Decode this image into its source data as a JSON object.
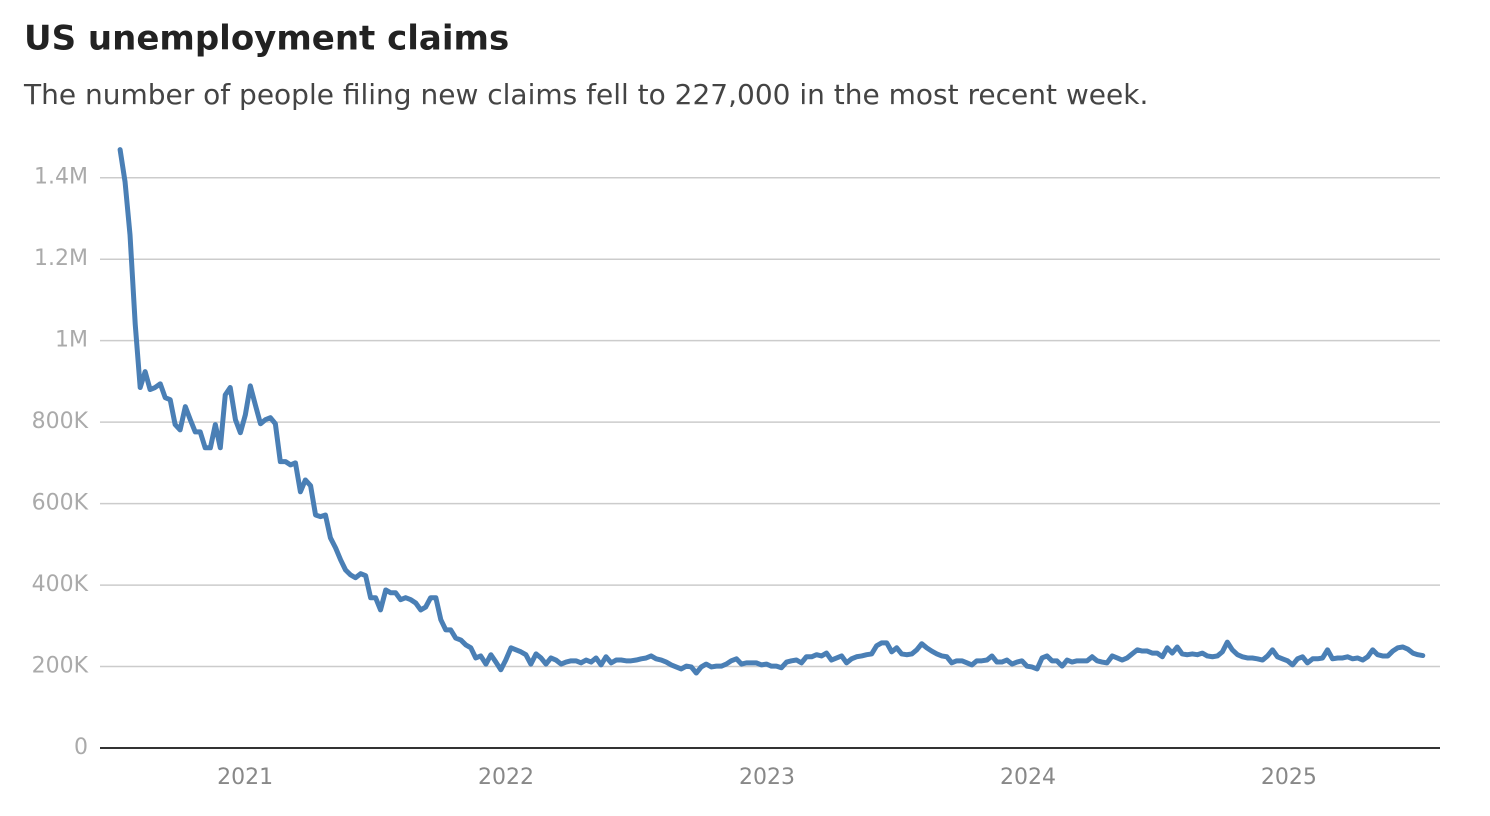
{
  "chart_data": {
    "type": "line",
    "title": "US unemployment claims",
    "subtitle": "The number of people filing new claims fell to 227,000 in the most recent week.",
    "color": "#4a7fb5",
    "grid": true,
    "xlim": [
      2020.444,
      2025.579
    ],
    "xticks": [
      2021,
      2022,
      2023,
      2024,
      2025
    ],
    "ylim": [
      0,
      1500000
    ],
    "yticks": [
      0,
      {
        "value": 200000,
        "label": "200K"
      },
      {
        "value": 400000,
        "label": "400K"
      },
      {
        "value": 600000,
        "label": "600K"
      },
      {
        "value": 800000,
        "label": "800K"
      },
      {
        "value": 1000000,
        "label": "1M"
      },
      {
        "value": 1200000,
        "label": "1.2M"
      },
      {
        "value": 1400000,
        "label": "1.4M"
      }
    ],
    "x": [
      2020.521,
      2020.54,
      2020.559,
      2020.579,
      2020.598,
      2020.617,
      2020.636,
      2020.655,
      2020.675,
      2020.694,
      2020.713,
      2020.732,
      2020.751,
      2020.771,
      2020.79,
      2020.809,
      2020.828,
      2020.847,
      2020.867,
      2020.886,
      2020.905,
      2020.924,
      2020.943,
      2020.963,
      2020.982,
      2021.001,
      2021.02,
      2021.039,
      2021.059,
      2021.078,
      2021.097,
      2021.116,
      2021.135,
      2021.155,
      2021.174,
      2021.193,
      2021.212,
      2021.231,
      2021.251,
      2021.27,
      2021.289,
      2021.308,
      2021.327,
      2021.347,
      2021.366,
      2021.385,
      2021.404,
      2021.423,
      2021.443,
      2021.462,
      2021.481,
      2021.5,
      2021.519,
      2021.539,
      2021.558,
      2021.577,
      2021.596,
      2021.615,
      2021.635,
      2021.654,
      2021.673,
      2021.692,
      2021.711,
      2021.731,
      2021.75,
      2021.769,
      2021.788,
      2021.807,
      2021.827,
      2021.846,
      2021.865,
      2021.884,
      2021.903,
      2021.923,
      2021.942,
      2021.961,
      2021.98,
      2021.999,
      2022.019,
      2022.038,
      2022.057,
      2022.076,
      2022.095,
      2022.115,
      2022.134,
      2022.153,
      2022.172,
      2022.191,
      2022.211,
      2022.23,
      2022.249,
      2022.268,
      2022.287,
      2022.307,
      2022.326,
      2022.345,
      2022.364,
      2022.383,
      2022.403,
      2022.422,
      2022.441,
      2022.46,
      2022.479,
      2022.499,
      2022.518,
      2022.537,
      2022.556,
      2022.575,
      2022.595,
      2022.614,
      2022.633,
      2022.652,
      2022.671,
      2022.691,
      2022.71,
      2022.729,
      2022.748,
      2022.767,
      2022.787,
      2022.806,
      2022.825,
      2022.844,
      2022.863,
      2022.883,
      2022.902,
      2022.921,
      2022.94,
      2022.959,
      2022.979,
      2022.998,
      2023.017,
      2023.036,
      2023.055,
      2023.075,
      2023.094,
      2023.113,
      2023.132,
      2023.151,
      2023.171,
      2023.19,
      2023.209,
      2023.228,
      2023.247,
      2023.267,
      2023.286,
      2023.305,
      2023.324,
      2023.343,
      2023.363,
      2023.382,
      2023.401,
      2023.42,
      2023.439,
      2023.459,
      2023.478,
      2023.497,
      2023.516,
      2023.535,
      2023.555,
      2023.574,
      2023.593,
      2023.612,
      2023.631,
      2023.651,
      2023.67,
      2023.689,
      2023.708,
      2023.727,
      2023.747,
      2023.766,
      2023.785,
      2023.804,
      2023.823,
      2023.843,
      2023.862,
      2023.881,
      2023.9,
      2023.919,
      2023.939,
      2023.958,
      2023.977,
      2023.996,
      2024.015,
      2024.035,
      2024.054,
      2024.073,
      2024.092,
      2024.111,
      2024.131,
      2024.15,
      2024.169,
      2024.188,
      2024.207,
      2024.227,
      2024.246,
      2024.265,
      2024.284,
      2024.303,
      2024.323,
      2024.342,
      2024.361,
      2024.38,
      2024.399,
      2024.419,
      2024.438,
      2024.457,
      2024.476,
      2024.495,
      2024.515,
      2024.534,
      2024.553,
      2024.572,
      2024.591,
      2024.611,
      2024.63,
      2024.649,
      2024.668,
      2024.687,
      2024.707,
      2024.726,
      2024.745,
      2024.764,
      2024.783,
      2024.803,
      2024.822,
      2024.841,
      2024.86,
      2024.879,
      2024.899,
      2024.918,
      2024.937,
      2024.956,
      2024.975,
      2024.995,
      2025.014,
      2025.033,
      2025.052,
      2025.071,
      2025.091,
      2025.11,
      2025.129,
      2025.148,
      2025.167,
      2025.187,
      2025.206,
      2025.225,
      2025.244,
      2025.263,
      2025.283,
      2025.302,
      2025.321,
      2025.34,
      2025.359,
      2025.379,
      2025.398,
      2025.417,
      2025.436,
      2025.455,
      2025.475,
      2025.494,
      2025.513
    ],
    "values": [
      1469000,
      1390000,
      1260000,
      1040000,
      885000,
      924000,
      880000,
      885000,
      894000,
      860000,
      855000,
      794000,
      781000,
      838000,
      806000,
      776000,
      776000,
      737000,
      737000,
      794000,
      737000,
      867000,
      885000,
      806000,
      774000,
      818000,
      889000,
      843000,
      796000,
      806000,
      811000,
      796000,
      703000,
      703000,
      695000,
      700000,
      629000,
      658000,
      644000,
      572000,
      568000,
      572000,
      516000,
      491000,
      462000,
      437000,
      425000,
      418000,
      428000,
      423000,
      369000,
      369000,
      339000,
      388000,
      381000,
      381000,
      364000,
      369000,
      364000,
      356000,
      339000,
      346000,
      369000,
      369000,
      315000,
      290000,
      290000,
      270000,
      265000,
      253000,
      246000,
      221000,
      226000,
      206000,
      229000,
      211000,
      192000,
      216000,
      246000,
      241000,
      236000,
      229000,
      206000,
      231000,
      221000,
      206000,
      221000,
      216000,
      206000,
      211000,
      214000,
      214000,
      209000,
      216000,
      211000,
      221000,
      204000,
      224000,
      209000,
      216000,
      216000,
      214000,
      214000,
      216000,
      219000,
      221000,
      226000,
      219000,
      216000,
      211000,
      204000,
      199000,
      194000,
      201000,
      199000,
      184000,
      199000,
      206000,
      199000,
      201000,
      201000,
      206000,
      214000,
      219000,
      206000,
      209000,
      209000,
      209000,
      204000,
      206000,
      201000,
      201000,
      197000,
      211000,
      214000,
      216000,
      209000,
      224000,
      224000,
      229000,
      226000,
      233000,
      216000,
      221000,
      226000,
      209000,
      219000,
      224000,
      226000,
      229000,
      231000,
      251000,
      258000,
      258000,
      236000,
      246000,
      231000,
      229000,
      231000,
      241000,
      256000,
      246000,
      238000,
      231000,
      226000,
      224000,
      209000,
      214000,
      214000,
      209000,
      204000,
      214000,
      214000,
      216000,
      226000,
      211000,
      211000,
      216000,
      206000,
      211000,
      214000,
      201000,
      199000,
      194000,
      221000,
      226000,
      214000,
      214000,
      201000,
      216000,
      211000,
      214000,
      214000,
      214000,
      224000,
      214000,
      211000,
      209000,
      226000,
      221000,
      216000,
      221000,
      231000,
      241000,
      238000,
      238000,
      233000,
      233000,
      224000,
      246000,
      233000,
      248000,
      231000,
      229000,
      231000,
      229000,
      233000,
      226000,
      224000,
      226000,
      236000,
      260000,
      241000,
      229000,
      224000,
      221000,
      221000,
      219000,
      216000,
      226000,
      241000,
      224000,
      219000,
      214000,
      204000,
      219000,
      224000,
      209000,
      219000,
      219000,
      221000,
      241000,
      219000,
      221000,
      221000,
      224000,
      219000,
      221000,
      216000,
      224000,
      241000,
      229000,
      226000,
      226000,
      238000,
      246000,
      248000,
      243000,
      233000,
      229000,
      227000
    ]
  }
}
